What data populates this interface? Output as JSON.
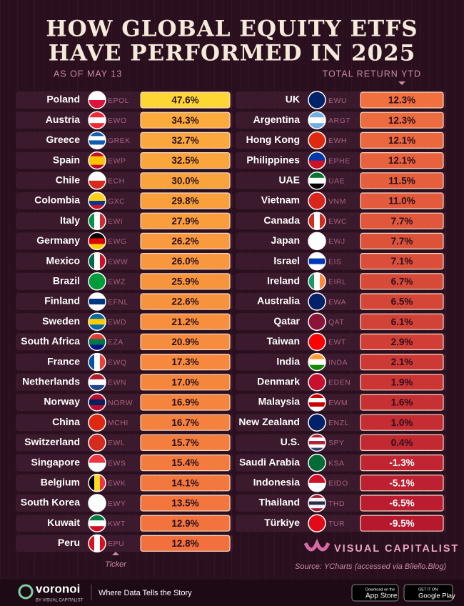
{
  "header": {
    "title_line1": "HOW GLOBAL EQUITY ETFS",
    "title_line2": "HAVE PERFORMED IN 2025",
    "date_note": "AS OF MAY 13",
    "return_note": "TOTAL RETURN YTD"
  },
  "left_rows": [
    {
      "country": "Poland",
      "ticker": "EPOL",
      "return": "47.6%"
    },
    {
      "country": "Austria",
      "ticker": "EWO",
      "return": "34.3%"
    },
    {
      "country": "Greece",
      "ticker": "GREK",
      "return": "32.7%"
    },
    {
      "country": "Spain",
      "ticker": "EWP",
      "return": "32.5%"
    },
    {
      "country": "Chile",
      "ticker": "ECH",
      "return": "30.0%"
    },
    {
      "country": "Colombia",
      "ticker": "GXC",
      "return": "29.8%"
    },
    {
      "country": "Italy",
      "ticker": "EWI",
      "return": "27.9%"
    },
    {
      "country": "Germany",
      "ticker": "EWG",
      "return": "26.2%"
    },
    {
      "country": "Mexico",
      "ticker": "EWW",
      "return": "26.0%"
    },
    {
      "country": "Brazil",
      "ticker": "EWZ",
      "return": "25.9%"
    },
    {
      "country": "Finland",
      "ticker": "EFNL",
      "return": "22.6%"
    },
    {
      "country": "Sweden",
      "ticker": "EWD",
      "return": "21.2%"
    },
    {
      "country": "South Africa",
      "ticker": "EZA",
      "return": "20.9%"
    },
    {
      "country": "France",
      "ticker": "EWQ",
      "return": "17.3%"
    },
    {
      "country": "Netherlands",
      "ticker": "EWN",
      "return": "17.0%"
    },
    {
      "country": "Norway",
      "ticker": "NORW",
      "return": "16.9%"
    },
    {
      "country": "China",
      "ticker": "MCHI",
      "return": "16.7%"
    },
    {
      "country": "Switzerland",
      "ticker": "EWL",
      "return": "15.7%"
    },
    {
      "country": "Singapore",
      "ticker": "EWS",
      "return": "15.4%"
    },
    {
      "country": "Belgium",
      "ticker": "EWK",
      "return": "14.1%"
    },
    {
      "country": "South Korea",
      "ticker": "EWY",
      "return": "13.5%"
    },
    {
      "country": "Kuwait",
      "ticker": "KWT",
      "return": "12.9%"
    },
    {
      "country": "Peru",
      "ticker": "EPU",
      "return": "12.8%"
    }
  ],
  "right_rows": [
    {
      "country": "UK",
      "ticker": "EWU",
      "return": "12.3%"
    },
    {
      "country": "Argentina",
      "ticker": "ARGT",
      "return": "12.3%"
    },
    {
      "country": "Hong Kong",
      "ticker": "EWH",
      "return": "12.1%"
    },
    {
      "country": "Philippines",
      "ticker": "EPHE",
      "return": "12.1%"
    },
    {
      "country": "UAE",
      "ticker": "UAE",
      "return": "11.5%"
    },
    {
      "country": "Vietnam",
      "ticker": "VNM",
      "return": "11.0%"
    },
    {
      "country": "Canada",
      "ticker": "EWC",
      "return": "7.7%"
    },
    {
      "country": "Japan",
      "ticker": "EWJ",
      "return": "7.7%"
    },
    {
      "country": "Israel",
      "ticker": "EIS",
      "return": "7.1%"
    },
    {
      "country": "Ireland",
      "ticker": "EIRL",
      "return": "6.7%"
    },
    {
      "country": "Australia",
      "ticker": "EWA",
      "return": "6.5%"
    },
    {
      "country": "Qatar",
      "ticker": "QAT",
      "return": "6.1%"
    },
    {
      "country": "Taiwan",
      "ticker": "EWT",
      "return": "2.9%"
    },
    {
      "country": "India",
      "ticker": "INDA",
      "return": "2.1%"
    },
    {
      "country": "Denmark",
      "ticker": "EDEN",
      "return": "1.9%"
    },
    {
      "country": "Malaysia",
      "ticker": "EWM",
      "return": "1.6%"
    },
    {
      "country": "New Zealand",
      "ticker": "ENZL",
      "return": "1.0%"
    },
    {
      "country": "U.S.",
      "ticker": "SPY",
      "return": "0.4%"
    },
    {
      "country": "Saudi Arabia",
      "ticker": "KSA",
      "return": "-1.3%"
    },
    {
      "country": "Indonesia",
      "ticker": "EIDO",
      "return": "-5.1%"
    },
    {
      "country": "Thailand",
      "ticker": "THD",
      "return": "-6.5%"
    },
    {
      "country": "Türkiye",
      "ticker": "TUR",
      "return": "-9.5%"
    }
  ],
  "ticker_note": "Ticker",
  "brand": "VISUAL CAPITALIST",
  "source": "Source: YCharts (accessed via Bilello.Blog)",
  "footer": {
    "logo": "voronoi",
    "logo_sub": "BY VISUAL CAPITALIST",
    "tagline": "Where Data Tells the Story",
    "app_store_small": "Download on the",
    "app_store": "App Store",
    "google_small": "GET IT ON",
    "google": "Google Play"
  }
}
